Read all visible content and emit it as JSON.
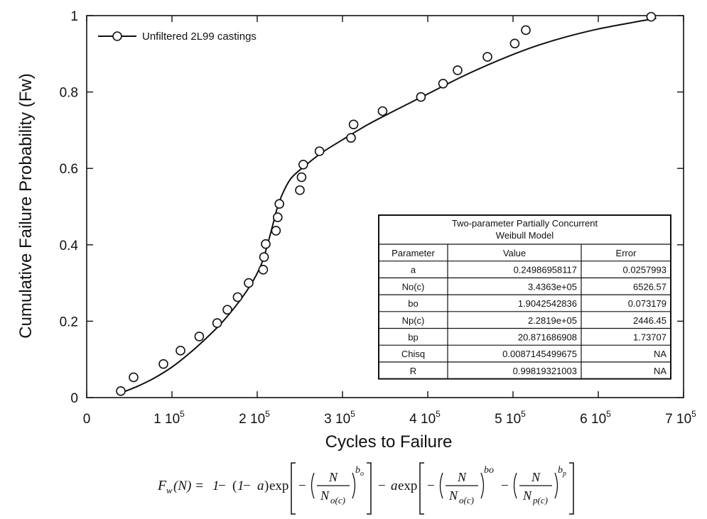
{
  "chart_data": {
    "type": "scatter",
    "title": "",
    "xlabel": "Cycles to Failure",
    "ylabel": "Cumulative Failure Probability (Fw)",
    "xlim": [
      0,
      700000
    ],
    "ylim": [
      0,
      1
    ],
    "grid": false,
    "x_ticks": [
      {
        "value": 0,
        "mantissa": "0",
        "exp": ""
      },
      {
        "value": 100000,
        "mantissa": "1 10",
        "exp": "5"
      },
      {
        "value": 200000,
        "mantissa": "2 10",
        "exp": "5"
      },
      {
        "value": 300000,
        "mantissa": "3 10",
        "exp": "5"
      },
      {
        "value": 400000,
        "mantissa": "4 10",
        "exp": "5"
      },
      {
        "value": 500000,
        "mantissa": "5 10",
        "exp": "5"
      },
      {
        "value": 600000,
        "mantissa": "6 10",
        "exp": "5"
      },
      {
        "value": 700000,
        "mantissa": "7 10",
        "exp": "5"
      }
    ],
    "y_ticks": [
      {
        "value": 0,
        "label": "0"
      },
      {
        "value": 0.2,
        "label": "0.2"
      },
      {
        "value": 0.4,
        "label": "0.4"
      },
      {
        "value": 0.6,
        "label": "0.6"
      },
      {
        "value": 0.8,
        "label": "0.8"
      },
      {
        "value": 1,
        "label": "1"
      }
    ],
    "legend": {
      "placement": "top-left",
      "label": "Unfiltered 2L99 castings"
    },
    "series": [
      {
        "name": "Unfiltered 2L99 castings",
        "marker": "open-circle",
        "points": [
          [
            40000,
            0.017
          ],
          [
            55000,
            0.053
          ],
          [
            90000,
            0.088
          ],
          [
            110000,
            0.123
          ],
          [
            132000,
            0.16
          ],
          [
            153000,
            0.195
          ],
          [
            165000,
            0.23
          ],
          [
            177000,
            0.263
          ],
          [
            190000,
            0.3
          ],
          [
            207000,
            0.335
          ],
          [
            208000,
            0.368
          ],
          [
            210000,
            0.402
          ],
          [
            222000,
            0.437
          ],
          [
            224000,
            0.472
          ],
          [
            226000,
            0.507
          ],
          [
            250000,
            0.543
          ],
          [
            252000,
            0.577
          ],
          [
            254000,
            0.61
          ],
          [
            273000,
            0.645
          ],
          [
            310000,
            0.68
          ],
          [
            313000,
            0.715
          ],
          [
            347000,
            0.75
          ],
          [
            392000,
            0.787
          ],
          [
            418000,
            0.822
          ],
          [
            435000,
            0.857
          ],
          [
            470000,
            0.892
          ],
          [
            502000,
            0.927
          ],
          [
            515000,
            0.962
          ],
          [
            662000,
            0.997
          ]
        ]
      }
    ],
    "fit_curve": {
      "points": [
        [
          40000,
          0.012
        ],
        [
          60000,
          0.03
        ],
        [
          80000,
          0.052
        ],
        [
          100000,
          0.08
        ],
        [
          120000,
          0.115
        ],
        [
          140000,
          0.155
        ],
        [
          160000,
          0.2
        ],
        [
          180000,
          0.255
        ],
        [
          195000,
          0.305
        ],
        [
          205000,
          0.35
        ],
        [
          212000,
          0.4
        ],
        [
          218000,
          0.45
        ],
        [
          224000,
          0.5
        ],
        [
          231000,
          0.54
        ],
        [
          240000,
          0.575
        ],
        [
          255000,
          0.605
        ],
        [
          275000,
          0.64
        ],
        [
          300000,
          0.675
        ],
        [
          330000,
          0.715
        ],
        [
          360000,
          0.75
        ],
        [
          400000,
          0.795
        ],
        [
          440000,
          0.84
        ],
        [
          480000,
          0.88
        ],
        [
          520000,
          0.915
        ],
        [
          560000,
          0.943
        ],
        [
          600000,
          0.965
        ],
        [
          640000,
          0.982
        ],
        [
          668000,
          0.993
        ]
      ]
    },
    "table": {
      "title_line1": "Two-parameter Partially Concurrent",
      "title_line2": "Weibull Model",
      "headers": [
        "Parameter",
        "Value",
        "Error"
      ],
      "rows": [
        [
          "a",
          "0.24986958117",
          "0.0257993"
        ],
        [
          "No(c)",
          "3.4363e+05",
          "6526.57"
        ],
        [
          "bo",
          "1.9042542836",
          "0.073179"
        ],
        [
          "Np(c)",
          "2.2819e+05",
          "2446.45"
        ],
        [
          "bp",
          "20.871686908",
          "1.73707"
        ],
        [
          "Chisq",
          "0.0087145499675",
          "NA"
        ],
        [
          "R",
          "0.99819321003",
          "NA"
        ]
      ]
    }
  },
  "formula": {
    "lhs": "F",
    "lhs_sub": "w",
    "arg": "(N) = ",
    "one": "1",
    "minus": " − ",
    "paren_open": "(",
    "paren_close": ")",
    "a": "a",
    "exp": "exp",
    "N": "N",
    "N_o": "N",
    "sub_o": "o(c)",
    "N_p": "N",
    "sub_p": "p(c)",
    "b_o": "b",
    "b_o_sub": "o",
    "b_p": "b",
    "b_p_sub": "p",
    "bo_plain": "bo"
  }
}
